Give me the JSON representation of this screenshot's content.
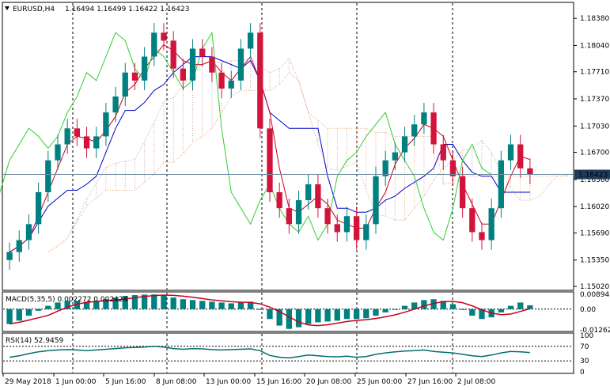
{
  "window": {
    "symbol": "EURUSD,H4",
    "ohlc": "1.16494 1.16499 1.16422 1.16423",
    "menu_icon": "triangle-down-icon"
  },
  "chart_data": [
    {
      "type": "candlestick",
      "title": "EURUSD,H4",
      "price_axis_labels": [
        "1.18380",
        "1.18040",
        "1.17710",
        "1.17370",
        "1.17030",
        "1.16700",
        "1.16360",
        "1.16020",
        "1.15690",
        "1.15350",
        "1.15020"
      ],
      "ylim": [
        1.1502,
        1.1855
      ],
      "current_price": "1.16423",
      "x_tick_labels": [
        "29 May 2018",
        "1 Jun 00:00",
        "5 Jun 16:00",
        "8 Jun 08:00",
        "13 Jun 00:00",
        "15 Jun 16:00",
        "20 Jun 08:00",
        "25 Jun 00:00",
        "27 Jun 16:00",
        "2 Jul 08:00"
      ],
      "series": [
        {
          "name": "Close",
          "values": [
            1.1545,
            1.156,
            1.158,
            1.162,
            1.166,
            1.168,
            1.17,
            1.169,
            1.1675,
            1.169,
            1.172,
            1.174,
            1.177,
            1.176,
            1.179,
            1.182,
            1.181,
            1.1775,
            1.176,
            1.18,
            1.179,
            1.177,
            1.175,
            1.176,
            1.18,
            1.182,
            1.17,
            1.162,
            1.16,
            1.158,
            1.161,
            1.163,
            1.16,
            1.158,
            1.157,
            1.159,
            1.156,
            1.158,
            1.164,
            1.166,
            1.167,
            1.169,
            1.1705,
            1.172,
            1.168,
            1.166,
            1.164,
            1.16,
            1.157,
            1.156,
            1.16,
            1.166,
            1.168,
            1.165,
            1.1642
          ]
        }
      ],
      "colors": {
        "bull": "#008080",
        "bear": "#d2143c",
        "kijun": "#0000c8",
        "tenkan": "#c8001e",
        "chikou": "#32cd32",
        "cloud_bull": "#c8a0a0",
        "cloud_bear": "#e8a070",
        "current_line": "#6e8ca0"
      }
    },
    {
      "type": "bar",
      "title": "MACD(5,35,5) 0.002272 0.002424",
      "axis_labels": [
        "0.008948",
        "0.00",
        "-0.012621"
      ],
      "values": [
        -0.009,
        -0.007,
        -0.004,
        -0.001,
        0.002,
        0.004,
        0.005,
        0.005,
        0.0045,
        0.005,
        0.006,
        0.007,
        0.008,
        0.0085,
        0.0088,
        0.0089,
        0.0085,
        0.007,
        0.006,
        0.0055,
        0.005,
        0.0045,
        0.004,
        0.0035,
        0.004,
        0.0045,
        0.0,
        -0.006,
        -0.01,
        -0.012,
        -0.011,
        -0.009,
        -0.008,
        -0.0075,
        -0.007,
        -0.006,
        -0.006,
        -0.0055,
        -0.004,
        -0.002,
        0.0,
        0.002,
        0.004,
        0.0055,
        0.006,
        0.005,
        0.003,
        0.0,
        -0.004,
        -0.006,
        -0.005,
        -0.002,
        0.002,
        0.004,
        0.0023
      ],
      "ylim": [
        -0.0126,
        0.009
      ],
      "colors": {
        "histogram": "#008080",
        "signal": "#c8001e"
      }
    },
    {
      "type": "line",
      "title": "RSI(14) 52.9459",
      "axis_labels": [
        "100",
        "70",
        "30",
        "0"
      ],
      "levels": [
        70,
        30
      ],
      "values": [
        40,
        44,
        50,
        55,
        58,
        60,
        61,
        60,
        58,
        60,
        62,
        64,
        66,
        67,
        68,
        70,
        68,
        64,
        62,
        64,
        63,
        61,
        60,
        61,
        62,
        63,
        58,
        45,
        40,
        38,
        42,
        46,
        44,
        42,
        41,
        43,
        40,
        42,
        48,
        52,
        55,
        57,
        58,
        60,
        56,
        54,
        52,
        48,
        44,
        42,
        46,
        52,
        56,
        55,
        53
      ],
      "ylim": [
        0,
        100
      ],
      "colors": {
        "line": "#006e6e"
      }
    }
  ]
}
